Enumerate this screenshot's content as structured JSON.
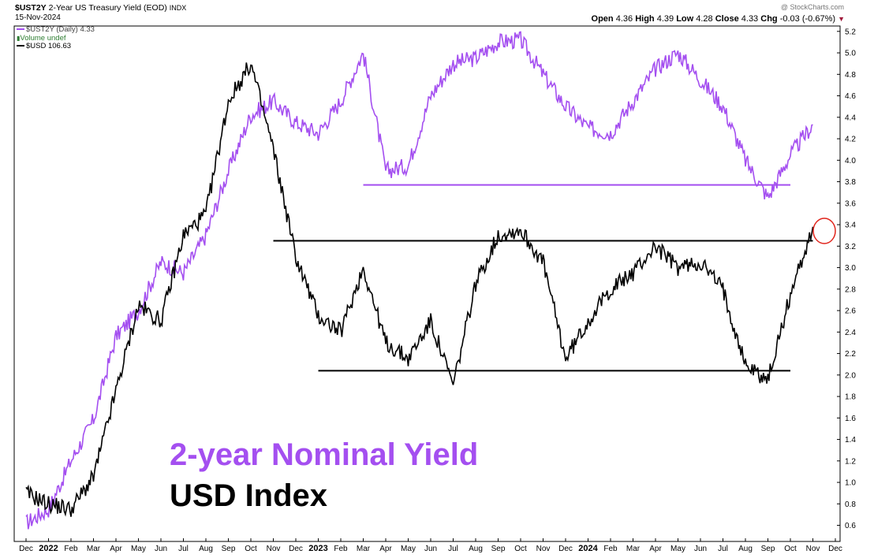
{
  "header": {
    "symbol": "$UST2Y",
    "name": "2-Year US Treasury Yield (EOD)",
    "exchange": "INDX",
    "date": "15-Nov-2024",
    "watermark": "@ StockCharts.com",
    "open_label": "Open",
    "open": "4.36",
    "high_label": "High",
    "high": "4.39",
    "low_label": "Low",
    "low": "4.28",
    "close_label": "Close",
    "close": "4.33",
    "chg_label": "Chg",
    "chg": "-0.03 (-0.67%)"
  },
  "legend": {
    "yield": "$UST2Y (Daily) 4.33",
    "volume": "Volume undef",
    "usd": "$USD 106.63"
  },
  "annotations": {
    "yield_label": "2-year Nominal Yield",
    "usd_label": "USD Index"
  },
  "colors": {
    "yield": "#a44ff0",
    "usd": "#000000",
    "circle": "#e0241b"
  },
  "chart_data": {
    "type": "line",
    "x_ticks": [
      "Dec",
      "2022",
      "Feb",
      "Mar",
      "Apr",
      "May",
      "Jun",
      "Jul",
      "Aug",
      "Sep",
      "Oct",
      "Nov",
      "Dec",
      "2023",
      "Feb",
      "Mar",
      "Apr",
      "May",
      "Jun",
      "Jul",
      "Aug",
      "Sep",
      "Oct",
      "Nov",
      "Dec",
      "2024",
      "Feb",
      "Mar",
      "Apr",
      "May",
      "Jun",
      "Jul",
      "Aug",
      "Sep",
      "Oct",
      "Nov",
      "Dec"
    ],
    "x_range": [
      "2021-12",
      "2024-12"
    ],
    "y_ticks": [
      0.6,
      0.8,
      1.0,
      1.2,
      1.4,
      1.6,
      1.8,
      2.0,
      2.2,
      2.4,
      2.6,
      2.8,
      3.0,
      3.2,
      3.4,
      3.6,
      3.8,
      4.0,
      4.2,
      4.4,
      4.6,
      4.8,
      5.0,
      5.2
    ],
    "ylim": [
      0.45,
      5.25
    ],
    "series": [
      {
        "name": "$UST2Y",
        "x": [
          "2021-12",
          "2022-01",
          "2022-02",
          "2022-03",
          "2022-04",
          "2022-05",
          "2022-06",
          "2022-07",
          "2022-08",
          "2022-09",
          "2022-10",
          "2022-11",
          "2022-12",
          "2023-01",
          "2023-02",
          "2023-03",
          "2023-04",
          "2023-05",
          "2023-06",
          "2023-07",
          "2023-08",
          "2023-09",
          "2023-10",
          "2023-11",
          "2023-12",
          "2024-01",
          "2024-02",
          "2024-03",
          "2024-04",
          "2024-05",
          "2024-06",
          "2024-07",
          "2024-08",
          "2024-09",
          "2024-10",
          "2024-11"
        ],
        "values": [
          0.62,
          0.75,
          1.2,
          1.58,
          2.36,
          2.6,
          3.05,
          2.95,
          3.3,
          3.9,
          4.42,
          4.55,
          4.35,
          4.25,
          4.55,
          5.0,
          3.9,
          3.95,
          4.6,
          4.9,
          4.95,
          5.1,
          5.12,
          4.8,
          4.5,
          4.3,
          4.25,
          4.55,
          4.85,
          5.0,
          4.75,
          4.5,
          4.0,
          3.65,
          4.05,
          4.33
        ]
      },
      {
        "name": "$USD",
        "x": [
          "2021-12",
          "2022-01",
          "2022-02",
          "2022-03",
          "2022-04",
          "2022-05",
          "2022-06",
          "2022-07",
          "2022-08",
          "2022-09",
          "2022-10",
          "2022-11",
          "2022-12",
          "2023-01",
          "2023-02",
          "2023-03",
          "2023-04",
          "2023-05",
          "2023-06",
          "2023-07",
          "2023-08",
          "2023-09",
          "2023-10",
          "2023-11",
          "2023-12",
          "2024-01",
          "2024-02",
          "2024-03",
          "2024-04",
          "2024-05",
          "2024-06",
          "2024-07",
          "2024-08",
          "2024-09",
          "2024-10",
          "2024-11"
        ],
        "values": [
          0.9,
          0.8,
          0.75,
          1.05,
          1.85,
          2.65,
          2.5,
          3.3,
          3.5,
          4.55,
          4.9,
          4.1,
          3.1,
          2.55,
          2.4,
          3.0,
          2.3,
          2.15,
          2.5,
          1.9,
          2.85,
          3.3,
          3.35,
          3.05,
          2.15,
          2.5,
          2.8,
          2.95,
          3.2,
          3.0,
          3.05,
          2.8,
          2.1,
          1.95,
          2.75,
          3.38
        ]
      }
    ],
    "horizontal_lines": [
      {
        "series": "$UST2Y",
        "value": 3.77,
        "from": "2023-03",
        "to": "2024-10"
      },
      {
        "series": "$USD",
        "value": 3.25,
        "from": "2022-11",
        "to": "2024-11"
      },
      {
        "series": "$USD",
        "value": 2.04,
        "from": "2023-01",
        "to": "2024-10"
      }
    ],
    "grid": false,
    "legend_position": "top-left"
  }
}
